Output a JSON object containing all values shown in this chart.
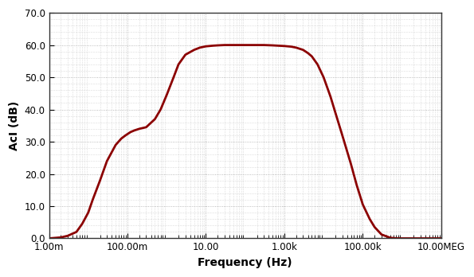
{
  "title": "",
  "xlabel": "Frequency (Hz)",
  "ylabel": "AcI (dB)",
  "line_color": "#8B0000",
  "line_width": 2.0,
  "xlim": [
    0.001,
    10000000.0
  ],
  "ylim": [
    0.0,
    70.0
  ],
  "yticks": [
    0.0,
    10.0,
    20.0,
    30.0,
    40.0,
    50.0,
    60.0,
    70.0
  ],
  "xtick_labels": [
    "1.00m",
    "100.00m",
    "10.00",
    "1.00k",
    "100.00k",
    "10.00MEG"
  ],
  "xtick_positions": [
    0.001,
    0.1,
    10.0,
    1000.0,
    100000.0,
    10000000.0
  ],
  "background_color": "#ffffff",
  "plot_bg_color": "#ffffff",
  "grid_color": "#aaaaaa",
  "curve_points": {
    "freq": [
      0.001,
      0.002,
      0.003,
      0.005,
      0.007,
      0.01,
      0.013,
      0.02,
      0.03,
      0.05,
      0.07,
      0.09,
      0.12,
      0.15,
      0.2,
      0.3,
      0.5,
      0.7,
      1.0,
      1.5,
      2.0,
      3.0,
      5.0,
      7.0,
      10.0,
      15.0,
      20.0,
      30.0,
      50.0,
      70.0,
      100.0,
      150.0,
      200.0,
      300.0,
      500.0,
      700.0,
      1000.0,
      1500.0,
      2000.0,
      3000.0,
      4000.0,
      5000.0,
      7000.0,
      10000.0,
      15000.0,
      20000.0,
      30000.0,
      50000.0,
      70000.0,
      100000.0,
      150000.0,
      200000.0,
      300000.0,
      500000.0,
      700000.0,
      1000000.0,
      2000000.0,
      5000000.0,
      10000000.0
    ],
    "dB": [
      0.0,
      0.3,
      0.8,
      2.0,
      4.5,
      8.0,
      12.0,
      18.0,
      24.0,
      29.0,
      31.0,
      32.0,
      33.0,
      33.5,
      34.0,
      34.5,
      37.0,
      40.0,
      44.5,
      50.0,
      54.0,
      57.0,
      58.5,
      59.2,
      59.6,
      59.8,
      59.9,
      60.0,
      60.0,
      60.0,
      60.0,
      60.0,
      60.0,
      60.0,
      59.9,
      59.8,
      59.7,
      59.5,
      59.2,
      58.5,
      57.5,
      56.5,
      54.0,
      50.0,
      44.0,
      39.0,
      32.0,
      23.0,
      16.5,
      10.5,
      6.0,
      3.5,
      1.2,
      0.2,
      0.02,
      0.0,
      0.0,
      0.0,
      0.0
    ]
  }
}
